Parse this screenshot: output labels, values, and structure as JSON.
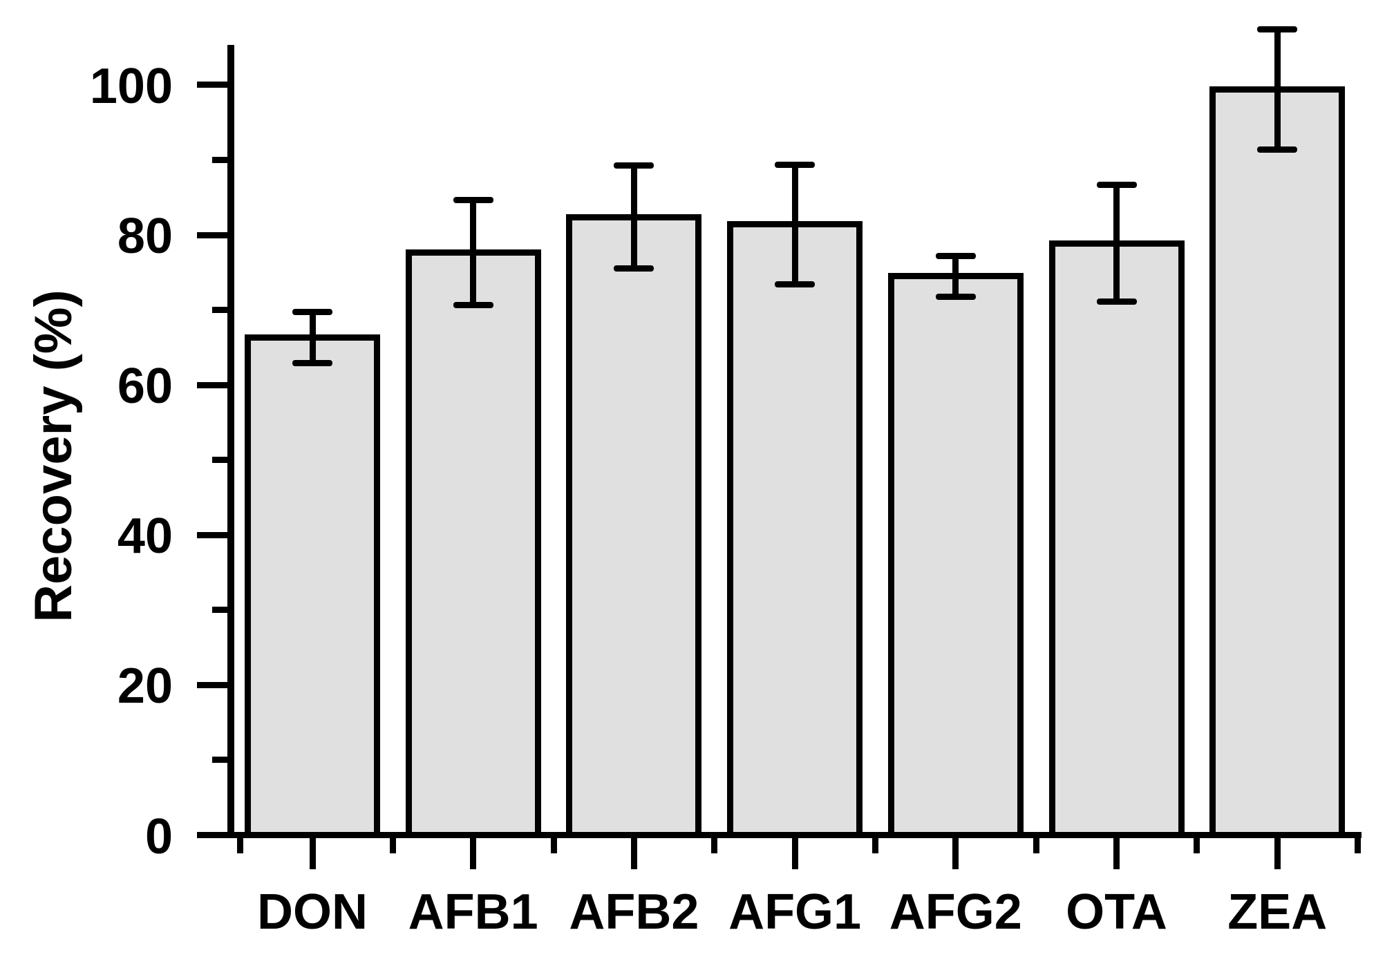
{
  "chart_data": {
    "type": "bar",
    "ylabel": "Recovery (%)",
    "xlabel": "",
    "categories": [
      "DON",
      "AFB1",
      "AFB2",
      "AFG1",
      "AFG2",
      "OTA",
      "ZEA"
    ],
    "values": [
      66.3,
      77.7,
      82.4,
      81.4,
      74.5,
      78.9,
      99.4
    ],
    "error_bars": [
      3.4,
      7.0,
      6.9,
      8.0,
      2.7,
      7.8,
      8.0
    ],
    "ylim": [
      0,
      105.5
    ],
    "ytick_major_values": [
      0,
      20,
      40,
      60,
      80,
      100
    ],
    "ytick_labels": [
      "0",
      "20",
      "40",
      "60",
      "80",
      "100"
    ],
    "ytick_minor_values": [
      10,
      30,
      50,
      70,
      90
    ],
    "grid": false,
    "legend": "none",
    "bar_fill_color": "#e0e0e0",
    "bar_edge_color": "#000000",
    "error_bar_color": "#000000",
    "axis_color": "#000000",
    "text_color": "#000000"
  }
}
